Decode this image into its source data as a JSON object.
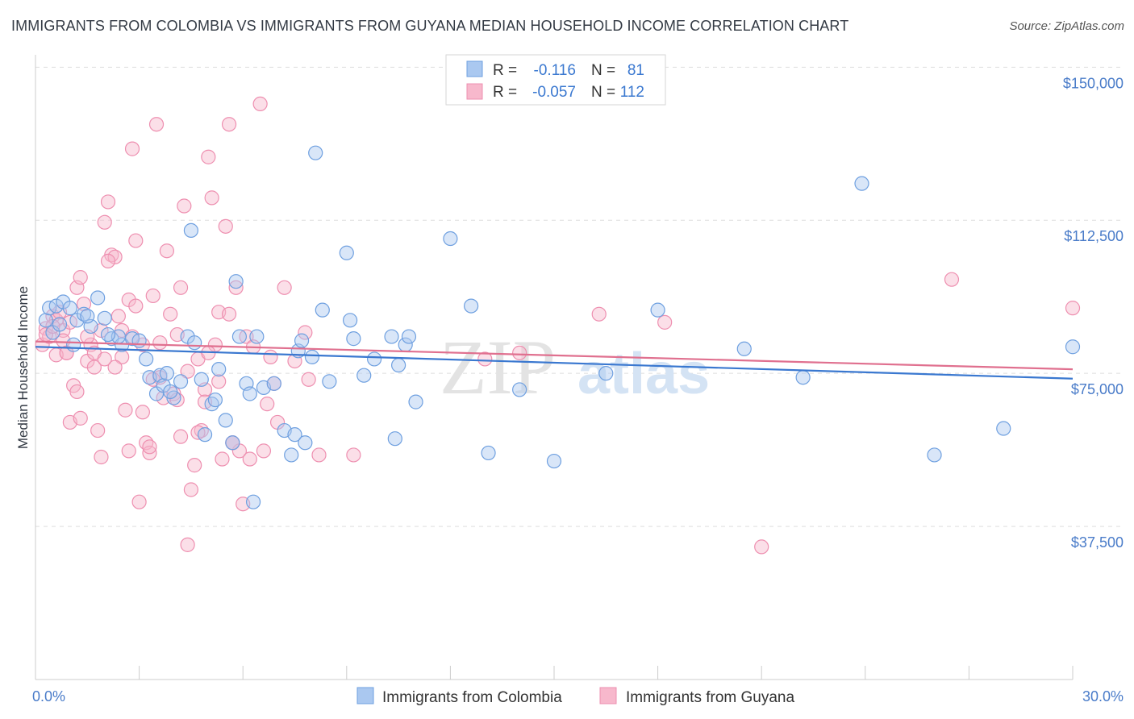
{
  "header": {
    "title": "IMMIGRANTS FROM COLOMBIA VS IMMIGRANTS FROM GUYANA MEDIAN HOUSEHOLD INCOME CORRELATION CHART",
    "source": "Source: ZipAtlas.com"
  },
  "watermark": {
    "zip": "ZIP",
    "atlas": "atlas"
  },
  "colors": {
    "colombia_fill": "#aac8f0",
    "colombia_stroke": "#6fa0e0",
    "colombia_line": "#3a78d0",
    "guyana_fill": "#f7b8cc",
    "guyana_stroke": "#ee8fb0",
    "guyana_line": "#e0708f",
    "tick_text": "#4a7cc9",
    "grid": "#dddddd"
  },
  "chart_data": {
    "type": "scatter",
    "title": "IMMIGRANTS FROM COLOMBIA VS IMMIGRANTS FROM GUYANA MEDIAN HOUSEHOLD INCOME CORRELATION CHART",
    "xlabel": "",
    "ylabel": "Median Household Income",
    "xlim": [
      0,
      30
    ],
    "ylim": [
      0,
      155000
    ],
    "x_tick_labels": {
      "min": "0.0%",
      "max": "30.0%"
    },
    "y_ticks": [
      {
        "value": 150000,
        "label": "$150,000"
      },
      {
        "value": 112500,
        "label": "$112,500"
      },
      {
        "value": 75000,
        "label": "$75,000"
      },
      {
        "value": 37500,
        "label": "$37,500"
      }
    ],
    "grid": "horizontal dashed",
    "legend_top": [
      {
        "r_label": "R =",
        "r_value": "-0.116",
        "n_label": "N =",
        "n_value": "81"
      },
      {
        "r_label": "R =",
        "r_value": "-0.057",
        "n_label": "N =",
        "n_value": "112"
      }
    ],
    "legend_bottom": [
      "Immigrants from Colombia",
      "Immigrants from Guyana"
    ],
    "series": [
      {
        "name": "Immigrants from Colombia",
        "trend": {
          "x0": 0,
          "y0": 81500,
          "x1": 30,
          "y1": 73700
        },
        "points": [
          [
            0.3,
            88000
          ],
          [
            0.4,
            91000
          ],
          [
            0.6,
            91500
          ],
          [
            0.5,
            85000
          ],
          [
            0.8,
            92500
          ],
          [
            1.0,
            91000
          ],
          [
            1.2,
            88000
          ],
          [
            1.4,
            89500
          ],
          [
            1.6,
            86500
          ],
          [
            1.8,
            93500
          ],
          [
            2.0,
            88500
          ],
          [
            2.2,
            83500
          ],
          [
            2.5,
            82000
          ],
          [
            2.4,
            84000
          ],
          [
            2.8,
            83500
          ],
          [
            3.0,
            83000
          ],
          [
            3.2,
            78500
          ],
          [
            3.3,
            74000
          ],
          [
            3.5,
            70000
          ],
          [
            3.6,
            74500
          ],
          [
            3.7,
            72000
          ],
          [
            3.8,
            75000
          ],
          [
            4.0,
            69000
          ],
          [
            4.2,
            73000
          ],
          [
            4.4,
            84000
          ],
          [
            4.5,
            110000
          ],
          [
            4.6,
            82500
          ],
          [
            4.8,
            73500
          ],
          [
            4.9,
            60000
          ],
          [
            5.1,
            67500
          ],
          [
            5.2,
            68500
          ],
          [
            5.3,
            76000
          ],
          [
            5.5,
            63500
          ],
          [
            5.7,
            58000
          ],
          [
            5.8,
            97500
          ],
          [
            5.9,
            84000
          ],
          [
            6.1,
            72500
          ],
          [
            6.2,
            70000
          ],
          [
            6.4,
            84000
          ],
          [
            6.6,
            71500
          ],
          [
            6.9,
            72500
          ],
          [
            7.2,
            61000
          ],
          [
            7.4,
            55000
          ],
          [
            7.5,
            60000
          ],
          [
            7.6,
            80500
          ],
          [
            7.7,
            83000
          ],
          [
            7.8,
            58000
          ],
          [
            8.0,
            79000
          ],
          [
            8.1,
            129000
          ],
          [
            8.3,
            90500
          ],
          [
            8.5,
            73000
          ],
          [
            9.0,
            104500
          ],
          [
            9.1,
            88000
          ],
          [
            9.2,
            83500
          ],
          [
            9.5,
            74500
          ],
          [
            9.8,
            78500
          ],
          [
            10.3,
            84000
          ],
          [
            10.5,
            77000
          ],
          [
            10.7,
            82000
          ],
          [
            10.8,
            84000
          ],
          [
            10.4,
            59000
          ],
          [
            11.0,
            68000
          ],
          [
            12.0,
            108000
          ],
          [
            12.6,
            91500
          ],
          [
            13.1,
            55500
          ],
          [
            14.0,
            71000
          ],
          [
            15.0,
            53500
          ],
          [
            16.5,
            75000
          ],
          [
            18.0,
            90500
          ],
          [
            20.5,
            81000
          ],
          [
            22.2,
            74000
          ],
          [
            23.9,
            121500
          ],
          [
            26.0,
            55000
          ],
          [
            28.0,
            61500
          ],
          [
            30.0,
            81500
          ],
          [
            1.1,
            82000
          ],
          [
            2.1,
            84500
          ],
          [
            0.7,
            87000
          ],
          [
            3.9,
            70500
          ],
          [
            6.3,
            43500
          ],
          [
            1.5,
            89000
          ]
        ]
      },
      {
        "name": "Immigrants from Guyana",
        "trend": {
          "x0": 0,
          "y0": 82800,
          "x1": 30,
          "y1": 76000
        },
        "points": [
          [
            0.2,
            82000
          ],
          [
            0.3,
            86000
          ],
          [
            0.4,
            84000
          ],
          [
            0.5,
            89000
          ],
          [
            0.6,
            88000
          ],
          [
            0.7,
            90000
          ],
          [
            0.8,
            85500
          ],
          [
            0.9,
            80000
          ],
          [
            1.0,
            63000
          ],
          [
            1.1,
            72000
          ],
          [
            1.2,
            96000
          ],
          [
            1.3,
            98500
          ],
          [
            1.4,
            92000
          ],
          [
            1.5,
            78000
          ],
          [
            1.6,
            82000
          ],
          [
            1.7,
            76500
          ],
          [
            1.8,
            61000
          ],
          [
            1.9,
            54500
          ],
          [
            2.0,
            112000
          ],
          [
            2.1,
            117000
          ],
          [
            2.2,
            104000
          ],
          [
            2.3,
            103500
          ],
          [
            2.4,
            89000
          ],
          [
            2.5,
            79000
          ],
          [
            2.6,
            66000
          ],
          [
            2.7,
            56000
          ],
          [
            2.8,
            130000
          ],
          [
            2.9,
            107500
          ],
          [
            3.0,
            43500
          ],
          [
            3.1,
            82000
          ],
          [
            3.2,
            58000
          ],
          [
            3.3,
            55500
          ],
          [
            3.4,
            94000
          ],
          [
            3.5,
            136000
          ],
          [
            3.6,
            74000
          ],
          [
            3.7,
            69000
          ],
          [
            3.8,
            105000
          ],
          [
            3.9,
            89500
          ],
          [
            4.0,
            70000
          ],
          [
            4.1,
            68500
          ],
          [
            4.2,
            96000
          ],
          [
            4.3,
            116000
          ],
          [
            4.4,
            33000
          ],
          [
            4.5,
            46500
          ],
          [
            4.6,
            52500
          ],
          [
            4.7,
            78500
          ],
          [
            4.8,
            61000
          ],
          [
            4.9,
            71000
          ],
          [
            5.0,
            128000
          ],
          [
            5.1,
            118000
          ],
          [
            5.2,
            82000
          ],
          [
            5.3,
            90000
          ],
          [
            5.4,
            54000
          ],
          [
            5.5,
            111000
          ],
          [
            5.6,
            136000
          ],
          [
            5.7,
            58000
          ],
          [
            5.8,
            96000
          ],
          [
            5.9,
            56000
          ],
          [
            6.0,
            43000
          ],
          [
            6.1,
            84000
          ],
          [
            6.2,
            54000
          ],
          [
            6.5,
            141000
          ],
          [
            6.6,
            56000
          ],
          [
            6.7,
            67500
          ],
          [
            6.8,
            79000
          ],
          [
            7.0,
            63000
          ],
          [
            7.2,
            96000
          ],
          [
            7.5,
            78000
          ],
          [
            7.8,
            85000
          ],
          [
            7.9,
            73500
          ],
          [
            8.2,
            55000
          ],
          [
            9.2,
            55000
          ],
          [
            13.0,
            78500
          ],
          [
            14.0,
            80000
          ],
          [
            16.3,
            89500
          ],
          [
            18.2,
            87500
          ],
          [
            21.0,
            32500
          ],
          [
            26.5,
            98000
          ],
          [
            30.0,
            91000
          ],
          [
            0.3,
            84500
          ],
          [
            0.5,
            86500
          ],
          [
            0.6,
            79500
          ],
          [
            0.8,
            83000
          ],
          [
            1.0,
            87500
          ],
          [
            1.2,
            70500
          ],
          [
            1.5,
            84000
          ],
          [
            1.7,
            80000
          ],
          [
            1.9,
            85500
          ],
          [
            2.1,
            102500
          ],
          [
            2.3,
            76500
          ],
          [
            2.5,
            85500
          ],
          [
            2.7,
            93000
          ],
          [
            2.9,
            91500
          ],
          [
            3.1,
            65500
          ],
          [
            3.3,
            57000
          ],
          [
            3.6,
            82500
          ],
          [
            4.1,
            84500
          ],
          [
            4.4,
            75500
          ],
          [
            4.7,
            60500
          ],
          [
            5.0,
            80000
          ],
          [
            5.3,
            73000
          ],
          [
            5.6,
            89500
          ],
          [
            0.9,
            80000
          ],
          [
            1.3,
            64000
          ],
          [
            2.0,
            78500
          ],
          [
            2.8,
            84000
          ],
          [
            3.4,
            73500
          ],
          [
            4.2,
            59500
          ],
          [
            4.9,
            68000
          ],
          [
            5.7,
            58000
          ],
          [
            6.3,
            81500
          ],
          [
            6.9,
            72500
          ]
        ]
      }
    ]
  }
}
